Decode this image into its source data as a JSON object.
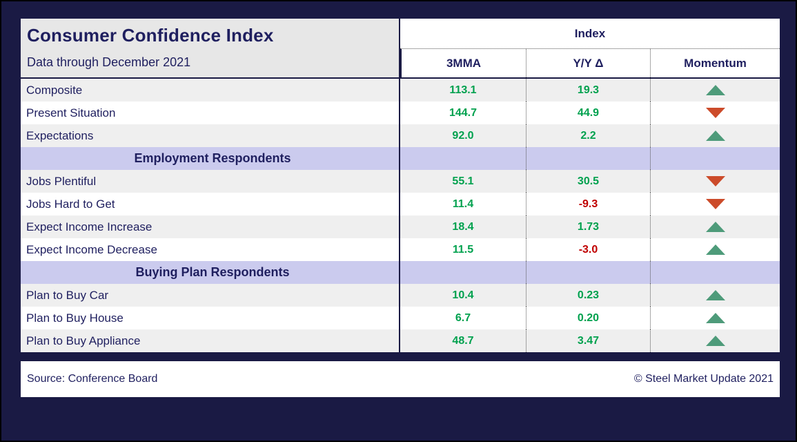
{
  "chart_data": {
    "type": "table",
    "title": "Consumer Confidence Index",
    "subtitle": "Data through December 2021",
    "index_group_label": "Index",
    "columns": [
      "3MMA",
      "Y/Y Δ",
      "Momentum"
    ],
    "rows": [
      {
        "type": "data",
        "label": "Composite",
        "mma": "113.1",
        "yoy": "19.3",
        "momentum": "up"
      },
      {
        "type": "data",
        "label": "Present Situation",
        "mma": "144.7",
        "yoy": "44.9",
        "momentum": "down"
      },
      {
        "type": "data",
        "label": "Expectations",
        "mma": "92.0",
        "yoy": "2.2",
        "momentum": "up"
      },
      {
        "type": "section",
        "label": "Employment Respondents"
      },
      {
        "type": "data",
        "label": "Jobs Plentiful",
        "mma": "55.1",
        "yoy": "30.5",
        "momentum": "down"
      },
      {
        "type": "data",
        "label": "Jobs Hard to Get",
        "mma": "11.4",
        "yoy": "-9.3",
        "momentum": "down"
      },
      {
        "type": "data",
        "label": "Expect Income Increase",
        "mma": "18.4",
        "yoy": "1.73",
        "momentum": "up"
      },
      {
        "type": "data",
        "label": "Expect Income Decrease",
        "mma": "11.5",
        "yoy": "-3.0",
        "momentum": "up"
      },
      {
        "type": "section",
        "label": "Buying Plan Respondents"
      },
      {
        "type": "data",
        "label": "Plan to Buy Car",
        "mma": "10.4",
        "yoy": "0.23",
        "momentum": "up"
      },
      {
        "type": "data",
        "label": "Plan to Buy House",
        "mma": "6.7",
        "yoy": "0.20",
        "momentum": "up"
      },
      {
        "type": "data",
        "label": "Plan to Buy Appliance",
        "mma": "48.7",
        "yoy": "3.47",
        "momentum": "up"
      }
    ]
  },
  "footer": {
    "source": "Source: Conference Board",
    "copyright": "© Steel Market Update 2021"
  },
  "colors": {
    "frame_bg": "#1A1A44",
    "line_navy": "#1A1A44",
    "navy_text": "#1F1F5F",
    "header_gray": "#E7E7E7",
    "row_shaded": "#EFEFEF",
    "row_white": "#FFFFFF",
    "section_bg": "#CBCBEE",
    "positive": "#00A14E",
    "negative": "#C00000",
    "up_arrow": "#4E9B7A",
    "down_arrow": "#CC4B2A"
  }
}
